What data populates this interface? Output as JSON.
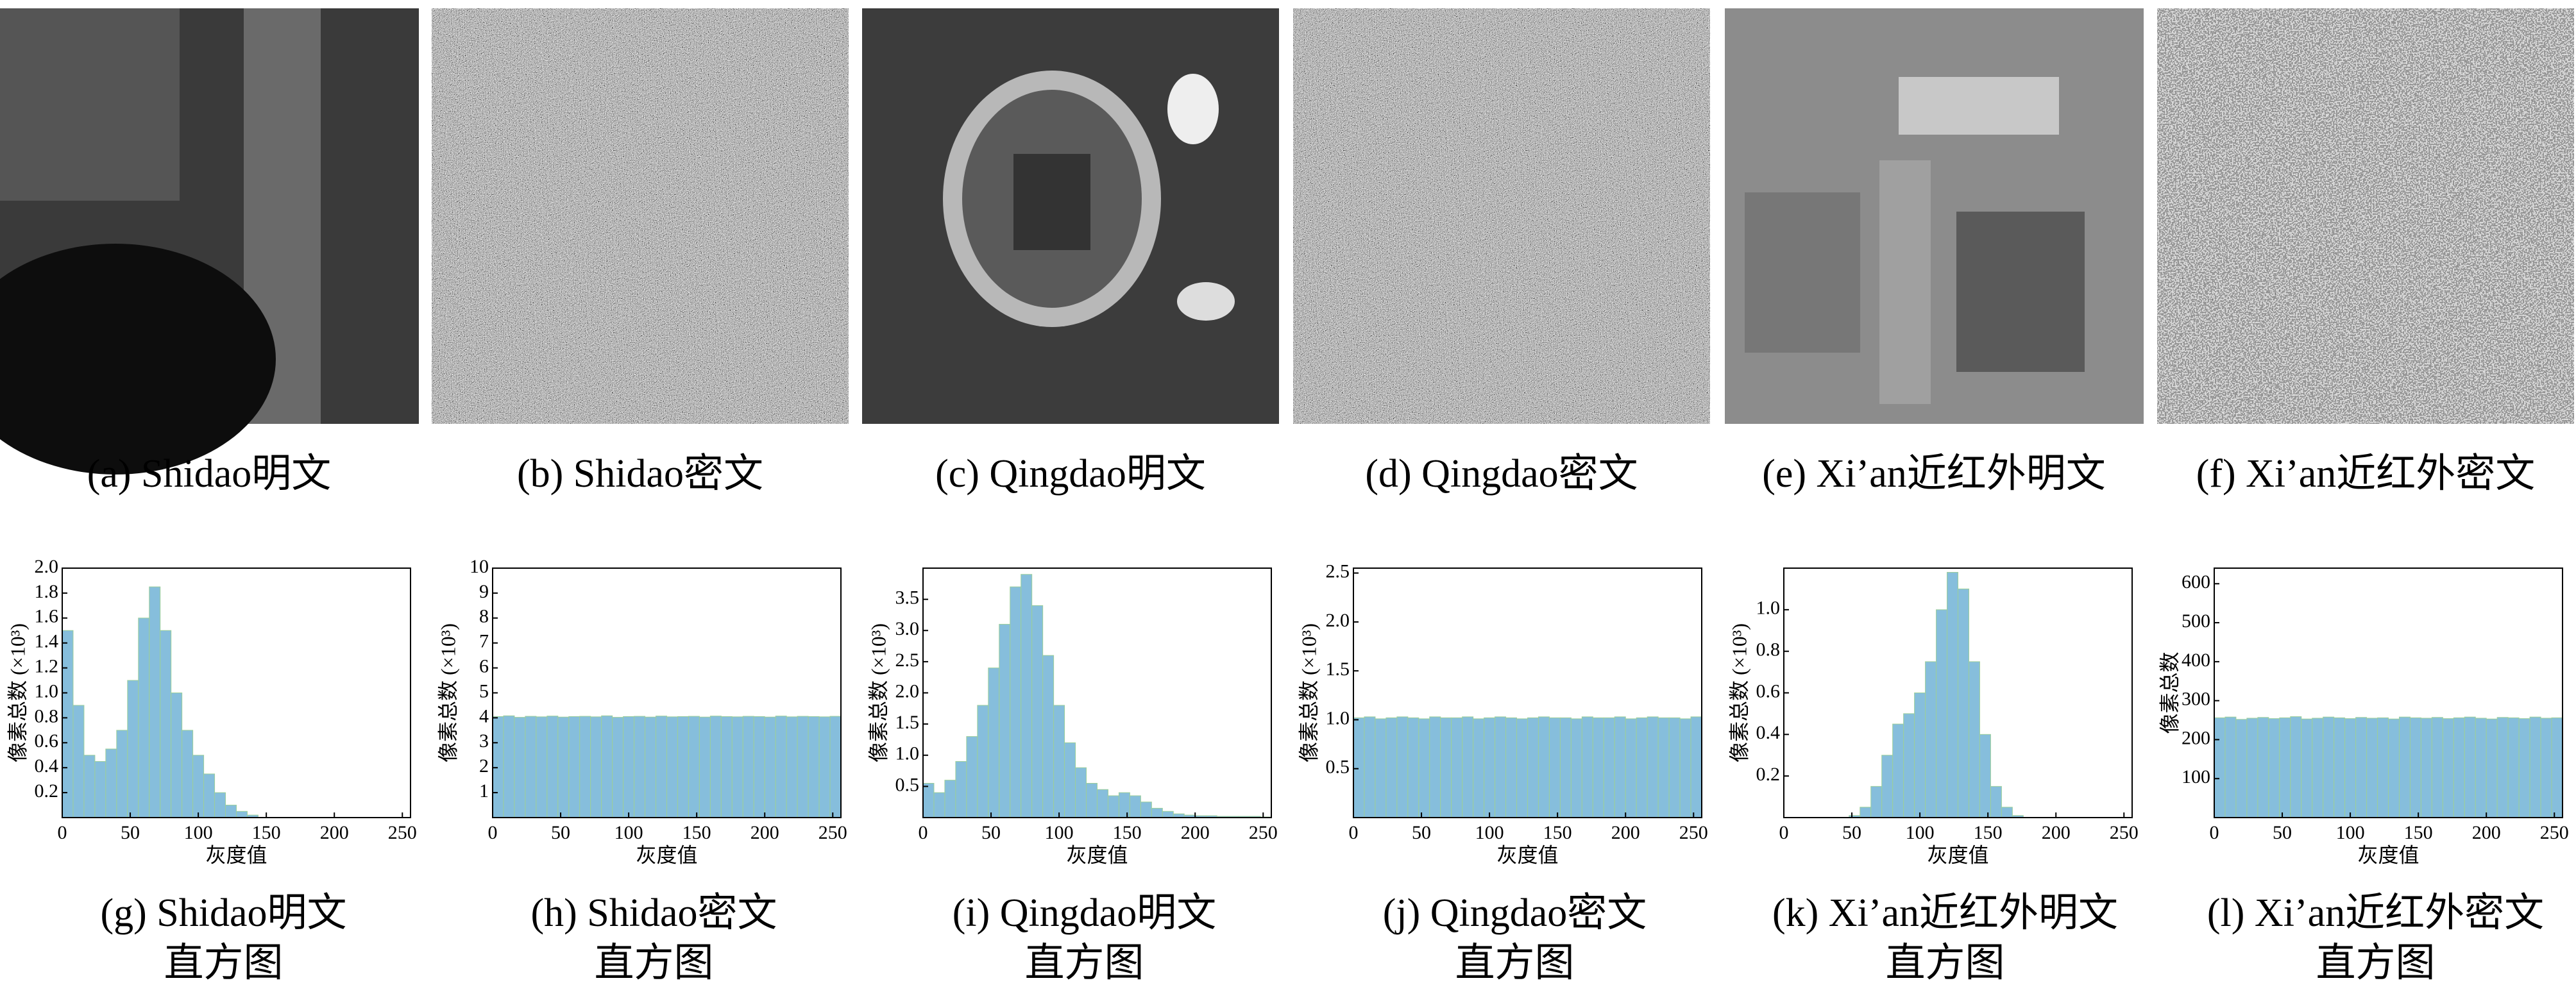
{
  "images": [
    {
      "caption": "(a) Shidao明文"
    },
    {
      "caption": "(b) Shidao密文"
    },
    {
      "caption": "(c) Qingdao明文"
    },
    {
      "caption": "(d) Qingdao密文"
    },
    {
      "caption": "(e) Xi’an近红外明文"
    },
    {
      "caption": "(f) Xi’an近红外密文"
    }
  ],
  "chart_data": [
    {
      "type": "histogram",
      "caption": [
        "(g) Shidao明文",
        "直方图"
      ],
      "xlabel": "灰度值",
      "ylabel": "像素总数 (×10³)",
      "color": "#86bedc",
      "bins": [
        0,
        8,
        16,
        24,
        32,
        40,
        48,
        56,
        64,
        72,
        80,
        88,
        96,
        104,
        112,
        120,
        128,
        136,
        144,
        152,
        160,
        168,
        176,
        184,
        192,
        200,
        208,
        216,
        224,
        232,
        240,
        248,
        256
      ],
      "values": [
        1.5,
        0.9,
        0.5,
        0.45,
        0.55,
        0.7,
        1.1,
        1.6,
        1.85,
        1.5,
        1.0,
        0.7,
        0.5,
        0.35,
        0.2,
        0.1,
        0.05,
        0.02,
        0,
        0,
        0,
        0,
        0,
        0,
        0,
        0,
        0,
        0,
        0,
        0,
        0,
        0
      ],
      "xlim": [
        0,
        256
      ],
      "xticks": [
        0,
        50,
        100,
        150,
        200,
        250
      ],
      "ylim": [
        0,
        2
      ],
      "yticks": [
        0.2,
        0.4,
        0.6,
        0.8,
        {
          "value": 1,
          "label": "1.0"
        },
        1.2,
        1.4,
        1.6,
        1.8,
        {
          "value": 2,
          "label": "2.0"
        }
      ]
    },
    {
      "type": "histogram",
      "caption": [
        "(h) Shidao密文",
        "直方图"
      ],
      "xlabel": "灰度值",
      "ylabel": "像素总数 (×10³)",
      "color": "#86bedc",
      "bins": [
        0,
        8,
        16,
        24,
        32,
        40,
        48,
        56,
        64,
        72,
        80,
        88,
        96,
        104,
        112,
        120,
        128,
        136,
        144,
        152,
        160,
        168,
        176,
        184,
        192,
        200,
        208,
        216,
        224,
        232,
        240,
        248,
        256
      ],
      "values": [
        4.05,
        4.08,
        4.02,
        4.06,
        4.04,
        4.07,
        4.03,
        4.05,
        4.06,
        4.04,
        4.08,
        4.02,
        4.05,
        4.06,
        4.03,
        4.07,
        4.04,
        4.05,
        4.06,
        4.03,
        4.07,
        4.05,
        4.04,
        4.06,
        4.05,
        4.03,
        4.07,
        4.04,
        4.06,
        4.05,
        4.04,
        4.06
      ],
      "xlim": [
        0,
        256
      ],
      "xticks": [
        0,
        50,
        100,
        150,
        200,
        250
      ],
      "ylim": [
        0,
        10
      ],
      "yticks": [
        1,
        2,
        3,
        4,
        5,
        6,
        7,
        8,
        9,
        10
      ]
    },
    {
      "type": "histogram",
      "caption": [
        "(i) Qingdao明文",
        "直方图"
      ],
      "xlabel": "灰度值",
      "ylabel": "像素总数 (×10³)",
      "color": "#86bedc",
      "bins": [
        0,
        8,
        16,
        24,
        32,
        40,
        48,
        56,
        64,
        72,
        80,
        88,
        96,
        104,
        112,
        120,
        128,
        136,
        144,
        152,
        160,
        168,
        176,
        184,
        192,
        200,
        208,
        216,
        224,
        232,
        240,
        248,
        256
      ],
      "values": [
        0.55,
        0.4,
        0.6,
        0.9,
        1.3,
        1.8,
        2.4,
        3.1,
        3.7,
        3.9,
        3.4,
        2.6,
        1.8,
        1.2,
        0.8,
        0.55,
        0.45,
        0.35,
        0.4,
        0.35,
        0.25,
        0.15,
        0.1,
        0.06,
        0.04,
        0.03,
        0.03,
        0.02,
        0.02,
        0.02,
        0.02,
        0.01
      ],
      "xlim": [
        0,
        256
      ],
      "xticks": [
        0,
        50,
        100,
        150,
        200,
        250
      ],
      "ylim": [
        0,
        4
      ],
      "yticks": [
        0.5,
        {
          "value": 1,
          "label": "1.0"
        },
        1.5,
        {
          "value": 2,
          "label": "2.0"
        },
        2.5,
        {
          "value": 3,
          "label": "3.0"
        },
        3.5
      ]
    },
    {
      "type": "histogram",
      "caption": [
        "(j) Qingdao密文",
        "直方图"
      ],
      "xlabel": "灰度值",
      "ylabel": "像素总数 (×10³)",
      "color": "#86bedc",
      "bins": [
        0,
        8,
        16,
        24,
        32,
        40,
        48,
        56,
        64,
        72,
        80,
        88,
        96,
        104,
        112,
        120,
        128,
        136,
        144,
        152,
        160,
        168,
        176,
        184,
        192,
        200,
        208,
        216,
        224,
        232,
        240,
        248,
        256
      ],
      "values": [
        1.02,
        1.03,
        1.01,
        1.02,
        1.03,
        1.02,
        1.01,
        1.03,
        1.02,
        1.02,
        1.03,
        1.01,
        1.02,
        1.03,
        1.02,
        1.01,
        1.02,
        1.03,
        1.02,
        1.02,
        1.01,
        1.03,
        1.02,
        1.02,
        1.03,
        1.01,
        1.02,
        1.03,
        1.02,
        1.02,
        1.01,
        1.03
      ],
      "xlim": [
        0,
        256
      ],
      "xticks": [
        0,
        50,
        100,
        150,
        200,
        250
      ],
      "ylim": [
        0,
        2.55
      ],
      "yticks": [
        0.5,
        {
          "value": 1,
          "label": "1.0"
        },
        1.5,
        {
          "value": 2,
          "label": "2.0"
        },
        2.5
      ]
    },
    {
      "type": "histogram",
      "caption": [
        "(k) Xi’an近红外明文",
        "直方图"
      ],
      "xlabel": "灰度值",
      "ylabel": "像素总数 (×10³)",
      "color": "#86bedc",
      "bins": [
        0,
        8,
        16,
        24,
        32,
        40,
        48,
        56,
        64,
        72,
        80,
        88,
        96,
        104,
        112,
        120,
        128,
        136,
        144,
        152,
        160,
        168,
        176,
        184,
        192,
        200,
        208,
        216,
        224,
        232,
        240,
        248,
        256
      ],
      "values": [
        0,
        0,
        0,
        0,
        0,
        0,
        0.01,
        0.05,
        0.15,
        0.3,
        0.45,
        0.5,
        0.6,
        0.75,
        1.0,
        1.18,
        1.1,
        0.75,
        0.4,
        0.15,
        0.05,
        0.01,
        0,
        0,
        0,
        0,
        0,
        0,
        0,
        0,
        0,
        0
      ],
      "xlim": [
        0,
        256
      ],
      "xticks": [
        0,
        50,
        100,
        150,
        200,
        250
      ],
      "ylim": [
        0,
        1.2
      ],
      "yticks": [
        0.2,
        0.4,
        0.6,
        0.8,
        {
          "value": 1,
          "label": "1.0"
        }
      ]
    },
    {
      "type": "histogram",
      "caption": [
        "(l) Xi’an近红外密文",
        "直方图"
      ],
      "xlabel": "灰度值",
      "ylabel": "像素总数",
      "color": "#86bedc",
      "bins": [
        0,
        8,
        16,
        24,
        32,
        40,
        48,
        56,
        64,
        72,
        80,
        88,
        96,
        104,
        112,
        120,
        128,
        136,
        144,
        152,
        160,
        168,
        176,
        184,
        192,
        200,
        208,
        216,
        224,
        232,
        240,
        248,
        256
      ],
      "values": [
        256,
        258,
        252,
        255,
        257,
        254,
        256,
        259,
        253,
        255,
        258,
        256,
        254,
        257,
        255,
        256,
        253,
        258,
        256,
        255,
        257,
        254,
        256,
        258,
        255,
        253,
        257,
        256,
        254,
        258,
        255,
        256
      ],
      "xlim": [
        0,
        256
      ],
      "xticks": [
        0,
        50,
        100,
        150,
        200,
        250
      ],
      "ylim": [
        0,
        640
      ],
      "yticks": [
        100,
        200,
        300,
        400,
        500,
        600
      ]
    }
  ]
}
